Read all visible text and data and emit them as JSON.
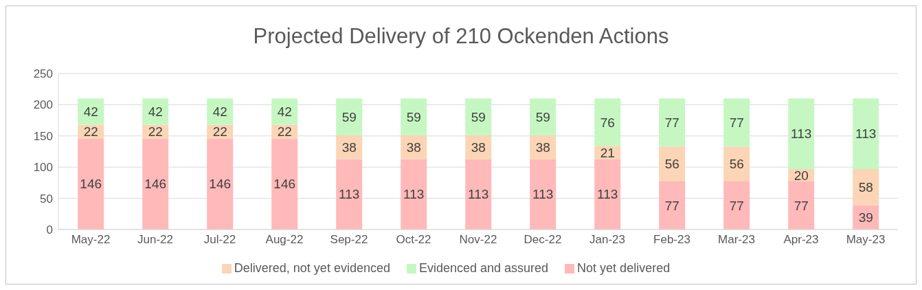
{
  "chart_data": {
    "type": "bar",
    "title": "Projected Delivery of 210 Ockenden Actions",
    "categories": [
      "May-22",
      "Jun-22",
      "Jul-22",
      "Aug-22",
      "Sep-22",
      "Oct-22",
      "Nov-22",
      "Dec-22",
      "Jan-23",
      "Feb-23",
      "Mar-23",
      "Apr-23",
      "May-23"
    ],
    "stacked": true,
    "series": [
      {
        "name": "Not yet delivered",
        "color": "#ffb9b9",
        "values": [
          146,
          146,
          146,
          146,
          113,
          113,
          113,
          113,
          113,
          77,
          77,
          77,
          39
        ]
      },
      {
        "name": "Delivered, not yet evidenced",
        "color": "#fbd5b5",
        "values": [
          22,
          22,
          22,
          22,
          38,
          38,
          38,
          38,
          21,
          56,
          56,
          20,
          58
        ]
      },
      {
        "name": "Evidenced and assured",
        "color": "#c6f7c2",
        "values": [
          42,
          42,
          42,
          42,
          59,
          59,
          59,
          59,
          76,
          77,
          77,
          113,
          113
        ]
      }
    ],
    "ylim": [
      0,
      250
    ],
    "yticks": [
      0,
      50,
      100,
      150,
      200,
      250
    ],
    "grid": "y",
    "legend": "bottom",
    "data_labels": true
  }
}
